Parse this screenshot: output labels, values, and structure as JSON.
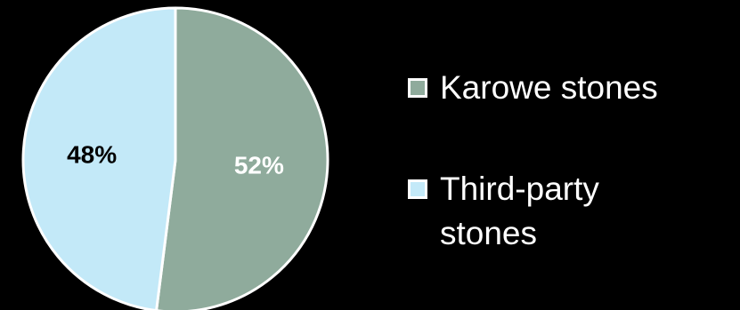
{
  "chart_data": {
    "type": "pie",
    "slices": [
      {
        "label": "Karowe stones",
        "value": 52,
        "display": "52%",
        "color": "#8fab9c",
        "text_color": "#ffffff"
      },
      {
        "label": "Third-party stones",
        "value": 48,
        "display": "48%",
        "color": "#c3e9f8",
        "text_color": "#000000"
      }
    ],
    "legend": {
      "placement": "right",
      "items": [
        "Karowe stones",
        "Third-party stones"
      ]
    },
    "border_color": "#ffffff",
    "background": "#000000"
  }
}
